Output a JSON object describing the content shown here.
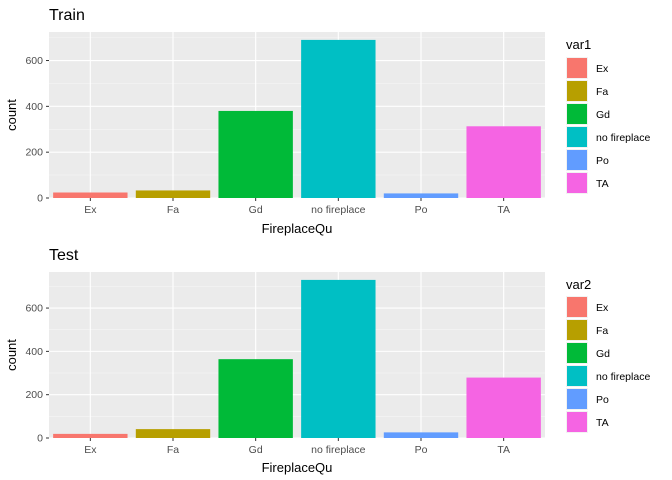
{
  "chart_data": [
    {
      "type": "bar",
      "title": "Train",
      "xlabel": "FireplaceQu",
      "ylabel": "count",
      "categories": [
        "Ex",
        "Fa",
        "Gd",
        "no fireplace",
        "Po",
        "TA"
      ],
      "values": [
        24,
        33,
        380,
        690,
        20,
        313
      ],
      "ylim": [
        0,
        724.5
      ],
      "yticks": [
        0,
        200,
        400,
        600
      ],
      "grid": true,
      "legend": {
        "title": "var1",
        "position": "right",
        "items": [
          "Ex",
          "Fa",
          "Gd",
          "no fireplace",
          "Po",
          "TA"
        ]
      }
    },
    {
      "type": "bar",
      "title": "Test",
      "xlabel": "FireplaceQu",
      "ylabel": "count",
      "categories": [
        "Ex",
        "Fa",
        "Gd",
        "no fireplace",
        "Po",
        "TA"
      ],
      "values": [
        19,
        41,
        364,
        730,
        26,
        279
      ],
      "ylim": [
        0,
        766.5
      ],
      "yticks": [
        0,
        200,
        400,
        600
      ],
      "grid": true,
      "legend": {
        "title": "var2",
        "position": "right",
        "items": [
          "Ex",
          "Fa",
          "Gd",
          "no fireplace",
          "Po",
          "TA"
        ]
      }
    }
  ],
  "colors": {
    "Ex": "#F8766D",
    "Fa": "#B79F00",
    "Gd": "#00BA38",
    "no fireplace": "#00BFC4",
    "Po": "#619CFF",
    "TA": "#F564E3",
    "panel_background": "#EBEBEB",
    "grid_major": "#FFFFFF",
    "grid_minor": "#F5F5F5"
  }
}
